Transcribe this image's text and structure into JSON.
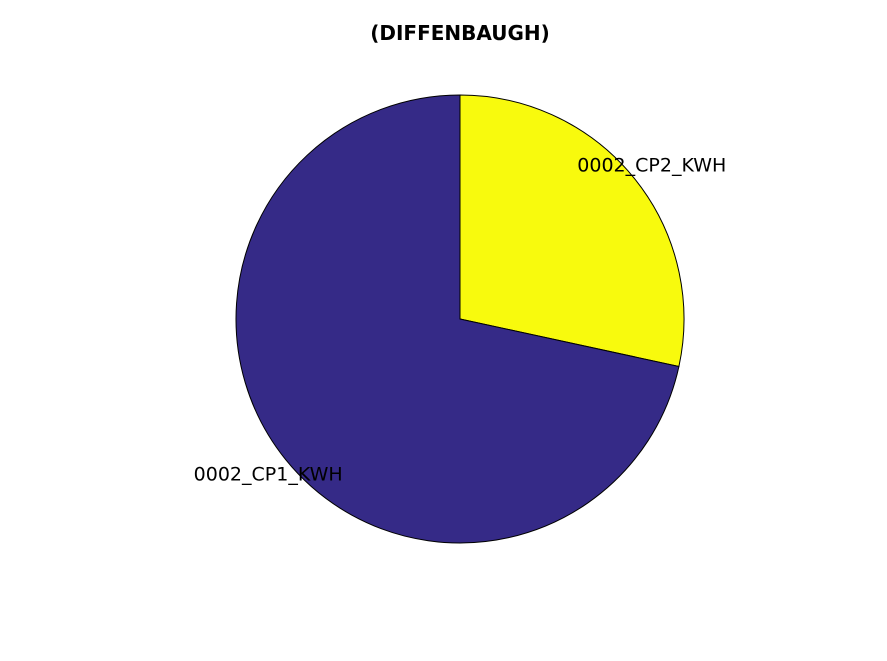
{
  "chart_data": {
    "type": "pie",
    "title": "(DIFFENBAUGH)",
    "slices": [
      {
        "label": "0002_CP2_KWH",
        "value": 28.4,
        "color": "#f8fa0d"
      },
      {
        "label": "0002_CP1_KWH",
        "value": 71.6,
        "color": "#352a87"
      }
    ],
    "start_angle_deg": 90,
    "direction": "clockwise"
  }
}
